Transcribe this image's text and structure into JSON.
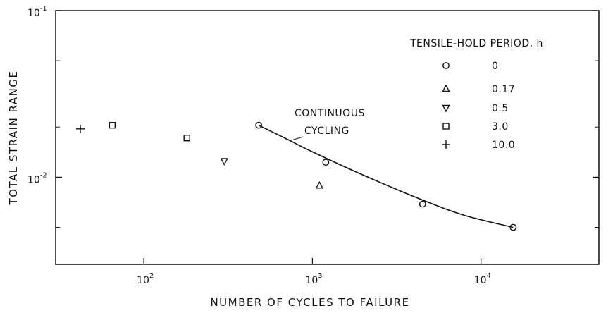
{
  "chart_data": {
    "type": "scatter",
    "xlabel": "NUMBER OF CYCLES TO FAILURE",
    "ylabel": "TOTAL STRAIN RANGE",
    "x_scale": "log",
    "y_scale": "log",
    "xlim": [
      30,
      50000
    ],
    "ylim": [
      0.003,
      0.1
    ],
    "x_ticks": [
      {
        "value": 100,
        "base": "10",
        "exp": "2"
      },
      {
        "value": 1000,
        "base": "10",
        "exp": "3"
      },
      {
        "value": 10000,
        "base": "10",
        "exp": "4"
      }
    ],
    "y_ticks": [
      {
        "value": 0.1,
        "base": "10",
        "exp": "-1"
      },
      {
        "value": 0.01,
        "base": "10",
        "exp": "-2"
      }
    ],
    "y_minor_ticks": [
      0.05,
      0.02,
      0.005
    ],
    "grid": false,
    "legend": {
      "title": "TENSILE-HOLD PERIOD, h",
      "placement": "top-right",
      "entries": [
        {
          "marker": "circle",
          "label": "0"
        },
        {
          "marker": "triangle-up",
          "label": "0.17"
        },
        {
          "marker": "triangle-down",
          "label": "0.5"
        },
        {
          "marker": "square",
          "label": "3.0"
        },
        {
          "marker": "plus",
          "label": "10.0"
        }
      ]
    },
    "series": [
      {
        "name": "0",
        "marker": "circle",
        "points": [
          [
            480,
            0.0205
          ],
          [
            1200,
            0.0123
          ],
          [
            4500,
            0.0069
          ],
          [
            15500,
            0.005
          ]
        ]
      },
      {
        "name": "0.17",
        "marker": "triangle-up",
        "points": [
          [
            1100,
            0.0089
          ]
        ]
      },
      {
        "name": "0.5",
        "marker": "triangle-down",
        "points": [
          [
            300,
            0.0125
          ]
        ]
      },
      {
        "name": "3.0",
        "marker": "square",
        "points": [
          [
            65,
            0.0205
          ],
          [
            180,
            0.0172
          ]
        ]
      },
      {
        "name": "10.0",
        "marker": "plus",
        "points": [
          [
            42,
            0.0195
          ]
        ]
      }
    ],
    "curve": {
      "points": [
        [
          480,
          0.0205
        ],
        [
          700,
          0.017
        ],
        [
          1000,
          0.0142
        ],
        [
          2000,
          0.0103
        ],
        [
          4500,
          0.0073
        ],
        [
          8000,
          0.0059
        ],
        [
          15500,
          0.005
        ]
      ]
    },
    "annotation": {
      "lines": [
        "CONTINUOUS",
        "CYCLING"
      ],
      "arrow_to": [
        770,
        0.0168
      ]
    }
  }
}
